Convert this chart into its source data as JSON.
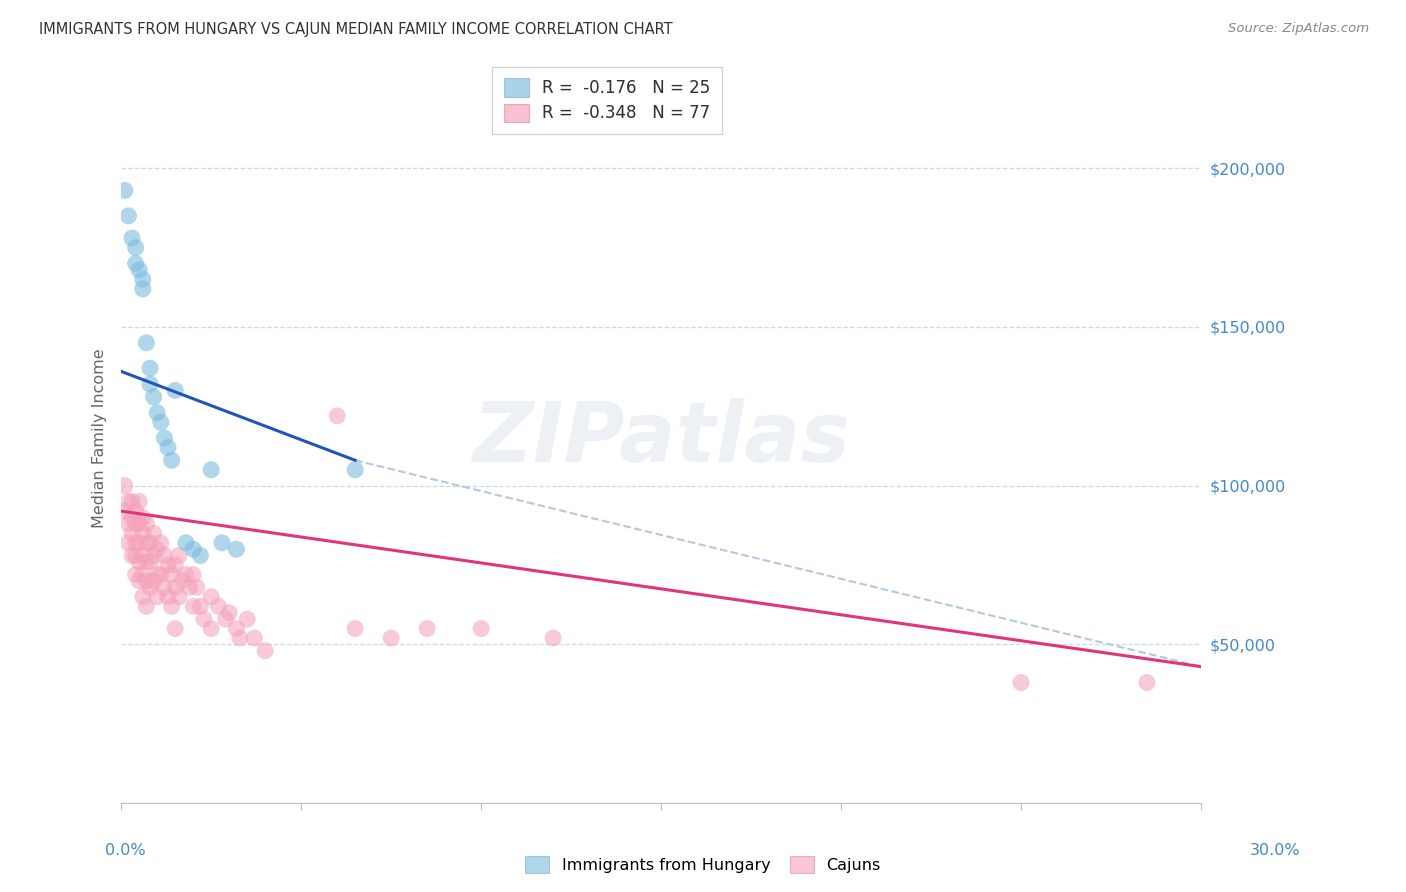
{
  "title": "IMMIGRANTS FROM HUNGARY VS CAJUN MEDIAN FAMILY INCOME CORRELATION CHART",
  "source": "Source: ZipAtlas.com",
  "ylabel": "Median Family Income",
  "xmin": 0.0,
  "xmax": 0.3,
  "ymin": 0,
  "ymax": 230000,
  "legend_r1": "R =  -0.176   N = 25",
  "legend_r2": "R =  -0.348   N = 77",
  "legend_label1": "Immigrants from Hungary",
  "legend_label2": "Cajuns",
  "blue_scatter_x": [
    0.001,
    0.002,
    0.003,
    0.004,
    0.004,
    0.005,
    0.006,
    0.006,
    0.007,
    0.008,
    0.008,
    0.009,
    0.01,
    0.011,
    0.012,
    0.013,
    0.014,
    0.015,
    0.018,
    0.02,
    0.022,
    0.025,
    0.028,
    0.032,
    0.065
  ],
  "blue_scatter_y": [
    193000,
    185000,
    178000,
    175000,
    170000,
    168000,
    165000,
    162000,
    145000,
    137000,
    132000,
    128000,
    123000,
    120000,
    115000,
    112000,
    108000,
    130000,
    82000,
    80000,
    78000,
    105000,
    82000,
    80000,
    105000
  ],
  "pink_scatter_x": [
    0.001,
    0.001,
    0.002,
    0.002,
    0.002,
    0.003,
    0.003,
    0.003,
    0.003,
    0.004,
    0.004,
    0.004,
    0.004,
    0.004,
    0.005,
    0.005,
    0.005,
    0.005,
    0.005,
    0.006,
    0.006,
    0.006,
    0.006,
    0.006,
    0.007,
    0.007,
    0.007,
    0.007,
    0.007,
    0.008,
    0.008,
    0.008,
    0.009,
    0.009,
    0.009,
    0.01,
    0.01,
    0.01,
    0.011,
    0.011,
    0.012,
    0.012,
    0.013,
    0.013,
    0.014,
    0.014,
    0.015,
    0.015,
    0.015,
    0.016,
    0.016,
    0.017,
    0.018,
    0.019,
    0.02,
    0.02,
    0.021,
    0.022,
    0.023,
    0.025,
    0.025,
    0.027,
    0.029,
    0.03,
    0.032,
    0.033,
    0.035,
    0.037,
    0.04,
    0.06,
    0.065,
    0.075,
    0.085,
    0.1,
    0.12,
    0.25,
    0.285
  ],
  "pink_scatter_y": [
    100000,
    92000,
    95000,
    88000,
    82000,
    95000,
    90000,
    85000,
    78000,
    92000,
    88000,
    82000,
    78000,
    72000,
    95000,
    88000,
    82000,
    76000,
    70000,
    90000,
    85000,
    78000,
    72000,
    65000,
    88000,
    82000,
    76000,
    70000,
    62000,
    82000,
    76000,
    68000,
    85000,
    78000,
    70000,
    80000,
    72000,
    65000,
    82000,
    72000,
    78000,
    68000,
    75000,
    65000,
    72000,
    62000,
    75000,
    68000,
    55000,
    78000,
    65000,
    70000,
    72000,
    68000,
    72000,
    62000,
    68000,
    62000,
    58000,
    65000,
    55000,
    62000,
    58000,
    60000,
    55000,
    52000,
    58000,
    52000,
    48000,
    122000,
    55000,
    52000,
    55000,
    55000,
    52000,
    38000,
    38000
  ],
  "blue_line_x": [
    0.0,
    0.065
  ],
  "blue_line_y": [
    136000,
    108000
  ],
  "pink_line_x": [
    0.0,
    0.3
  ],
  "pink_line_y": [
    92000,
    43000
  ],
  "dash_line_x": [
    0.065,
    0.3
  ],
  "dash_line_y": [
    108000,
    43000
  ],
  "ytick_positions": [
    0,
    50000,
    100000,
    150000,
    200000
  ],
  "ytick_labels": [
    "",
    "$50,000",
    "$100,000",
    "$150,000",
    "$200,000"
  ],
  "xtick_positions": [
    0.0,
    0.05,
    0.1,
    0.15,
    0.2,
    0.25,
    0.3
  ],
  "background_color": "#ffffff",
  "grid_color": "#c8d4e8",
  "blue_color": "#7bbcdf",
  "pink_color": "#f4a0b8",
  "blue_line_color": "#2255b8",
  "pink_line_color": "#e0357a",
  "dash_color": "#a8c0d8",
  "tick_label_color": "#4488cc",
  "title_color": "#333333",
  "ylabel_color": "#666666",
  "source_color": "#888888"
}
